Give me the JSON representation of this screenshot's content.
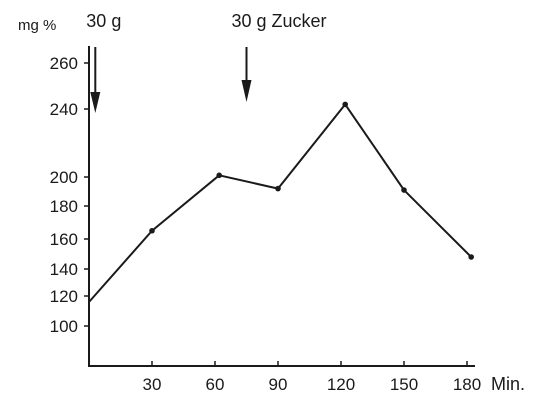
{
  "chart_data": {
    "type": "line",
    "title": "",
    "ylabel": "mg %",
    "xlabel": "Min.",
    "x": [
      0,
      30,
      62,
      90,
      122,
      150,
      182
    ],
    "series": [
      {
        "values": [
          116,
          165,
          201,
          192,
          242,
          191,
          148
        ]
      }
    ],
    "x_ticks": [
      {
        "value": 30,
        "label": "30"
      },
      {
        "value": 60,
        "label": "60"
      },
      {
        "value": 90,
        "label": "90"
      },
      {
        "value": 120,
        "label": "120"
      },
      {
        "value": 150,
        "label": "150"
      },
      {
        "value": 180,
        "label": "180"
      }
    ],
    "y_ticks": [
      {
        "value": 100,
        "label": "100"
      },
      {
        "value": 120,
        "label": "120"
      },
      {
        "value": 140,
        "label": "140"
      },
      {
        "value": 160,
        "label": "160"
      },
      {
        "value": 180,
        "label": "180"
      },
      {
        "value": 200,
        "label": "200"
      },
      {
        "value": 240,
        "label": "240"
      },
      {
        "value": 260,
        "label": "260"
      }
    ],
    "annotations": [
      {
        "text": "30 g",
        "x": 3
      },
      {
        "text": "30 g Zucker",
        "x": 75
      }
    ],
    "grid": false,
    "line_color": "#1a1a1a"
  }
}
